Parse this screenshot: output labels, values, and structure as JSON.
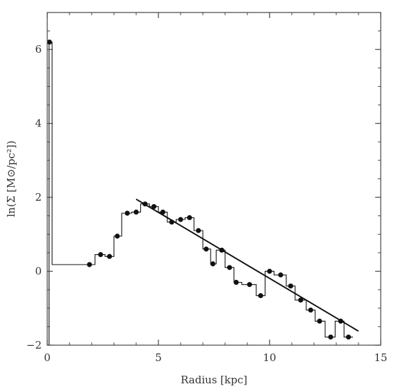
{
  "chart_data": {
    "type": "scatter",
    "xlabel": "Radius [kpc]",
    "ylabel": "ln(Σ [M⊙/pc²])",
    "xlim": [
      0,
      15
    ],
    "ylim": [
      -2,
      7
    ],
    "x_ticks": [
      0,
      5,
      10,
      15
    ],
    "y_ticks": [
      -2,
      0,
      2,
      4,
      6
    ],
    "grid": false,
    "legend": "none",
    "colors": {
      "ink": "#111111",
      "frame": "#444444"
    },
    "series": [
      {
        "style": "points",
        "x": [
          0.1,
          1.9,
          2.4,
          2.8,
          3.15,
          3.6,
          4.0,
          4.4,
          4.8,
          5.2,
          5.6,
          6.0,
          6.4,
          6.8,
          7.15,
          7.45,
          7.85,
          8.2,
          8.5,
          9.1,
          9.6,
          10.0,
          10.5,
          10.95,
          11.4,
          11.85,
          12.25,
          12.75,
          13.2,
          13.55
        ],
        "y": [
          6.2,
          0.18,
          0.45,
          0.4,
          0.95,
          1.57,
          1.6,
          1.82,
          1.75,
          1.6,
          1.33,
          1.4,
          1.45,
          1.1,
          0.6,
          0.2,
          0.57,
          0.1,
          -0.3,
          -0.36,
          -0.66,
          0.0,
          -0.1,
          -0.4,
          -0.78,
          -1.05,
          -1.35,
          -1.78,
          -1.35,
          -1.78
        ]
      },
      {
        "style": "step",
        "x": [
          0.08,
          0.08,
          0.22,
          0.22,
          1.9,
          2.15,
          2.15,
          2.6,
          2.6,
          3.0,
          3.0,
          3.35,
          3.35,
          3.8,
          3.8,
          4.2,
          4.2,
          4.6,
          4.6,
          5.0,
          5.0,
          5.4,
          5.4,
          5.8,
          5.8,
          6.2,
          6.2,
          6.6,
          6.6,
          7.0,
          7.0,
          7.35,
          7.35,
          7.6,
          7.6,
          8.0,
          8.0,
          8.4,
          8.4,
          8.75,
          8.75,
          9.4,
          9.4,
          9.8,
          9.8,
          10.2,
          10.2,
          10.75,
          10.75,
          11.15,
          11.15,
          11.65,
          11.65,
          12.05,
          12.05,
          12.5,
          12.5,
          12.95,
          12.95,
          13.35,
          13.35,
          13.75
        ],
        "y": [
          -2.0,
          6.2,
          6.2,
          0.18,
          0.18,
          0.18,
          0.45,
          0.45,
          0.4,
          0.4,
          0.95,
          0.95,
          1.57,
          1.57,
          1.6,
          1.6,
          1.82,
          1.82,
          1.75,
          1.75,
          1.6,
          1.6,
          1.33,
          1.33,
          1.4,
          1.4,
          1.45,
          1.45,
          1.1,
          1.1,
          0.6,
          0.6,
          0.2,
          0.2,
          0.57,
          0.57,
          0.1,
          0.1,
          -0.3,
          -0.3,
          -0.36,
          -0.36,
          -0.66,
          -0.66,
          0.0,
          0.0,
          -0.1,
          -0.1,
          -0.4,
          -0.4,
          -0.78,
          -0.78,
          -1.05,
          -1.05,
          -1.35,
          -1.35,
          -1.78,
          -1.78,
          -1.35,
          -1.35,
          -1.78,
          -1.78
        ]
      },
      {
        "style": "dashed",
        "x": [
          0.22,
          1.9
        ],
        "y": [
          0.18,
          0.18
        ]
      },
      {
        "style": "fit-line",
        "x": [
          4.0,
          14.0
        ],
        "y": [
          1.95,
          -1.62
        ]
      }
    ]
  }
}
